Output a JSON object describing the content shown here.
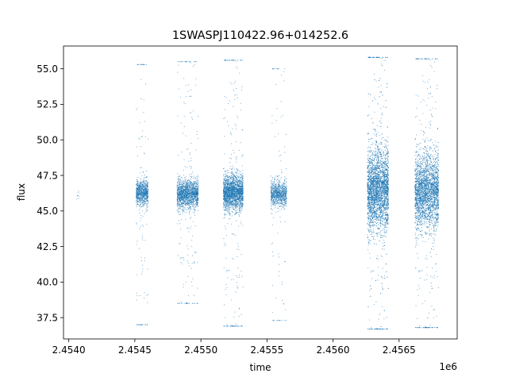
{
  "chart_data": {
    "type": "scatter",
    "title": "1SWASPJ110422.96+014252.6",
    "xlabel": "time",
    "ylabel": "flux",
    "x_offset_label": "1e6",
    "xlim": [
      2.45396,
      2.45694
    ],
    "ylim": [
      36.0,
      56.6
    ],
    "x_ticks": [
      2.454,
      2.4545,
      2.455,
      2.4555,
      2.456,
      2.4565
    ],
    "x_tick_labels": [
      "2.4540",
      "2.4545",
      "2.4550",
      "2.4555",
      "2.4560",
      "2.4565"
    ],
    "y_ticks": [
      37.5,
      40.0,
      42.5,
      45.0,
      47.5,
      50.0,
      52.5,
      55.0
    ],
    "y_tick_labels": [
      "37.5",
      "40.0",
      "42.5",
      "45.0",
      "47.5",
      "50.0",
      "52.5",
      "55.0"
    ],
    "grid": false,
    "marker_color": "#1f77b4",
    "series": [
      {
        "clusters": [
          {
            "x_range": [
              2.45406,
              2.45408
            ],
            "center": 46.0,
            "spread": 0.3,
            "tail_low": 45.6,
            "tail_high": 46.4,
            "count": 8
          },
          {
            "x_range": [
              2.45451,
              2.4546
            ],
            "center": 46.3,
            "spread": 0.45,
            "tail_low": 37.0,
            "tail_high": 55.3,
            "count": 900
          },
          {
            "x_range": [
              2.45482,
              2.45498
            ],
            "center": 46.2,
            "spread": 0.5,
            "tail_low": 38.5,
            "tail_high": 55.5,
            "count": 1700
          },
          {
            "x_range": [
              2.45517,
              2.45532
            ],
            "center": 46.3,
            "spread": 0.6,
            "tail_low": 36.9,
            "tail_high": 55.6,
            "count": 2200
          },
          {
            "x_range": [
              2.45553,
              2.45565
            ],
            "center": 46.2,
            "spread": 0.45,
            "tail_low": 37.3,
            "tail_high": 55.0,
            "count": 900
          },
          {
            "x_range": [
              2.45626,
              2.45642
            ],
            "center": 46.5,
            "spread": 1.4,
            "tail_low": 36.7,
            "tail_high": 55.8,
            "count": 3500
          },
          {
            "x_range": [
              2.45662,
              2.4568
            ],
            "center": 46.4,
            "spread": 1.3,
            "tail_low": 36.8,
            "tail_high": 55.7,
            "count": 3000
          }
        ]
      }
    ]
  }
}
